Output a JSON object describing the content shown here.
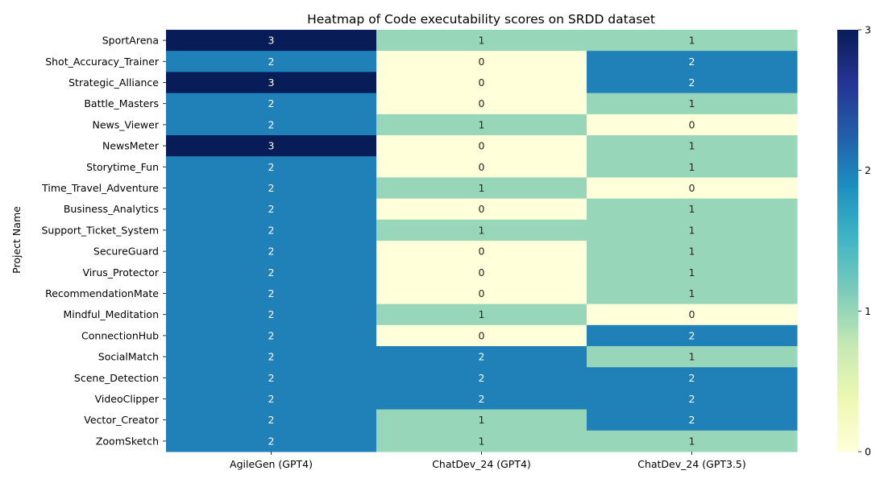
{
  "chart_data": {
    "type": "heatmap",
    "title": "Heatmap of Code executability scores on SRDD dataset",
    "xlabel": "",
    "ylabel": "Project Name",
    "columns": [
      "AgileGen (GPT4)",
      "ChatDev_24 (GPT4)",
      "ChatDev_24 (GPT3.5)"
    ],
    "rows": [
      "SportArena",
      "Shot_Accuracy_Trainer",
      "Strategic_Alliance",
      "Battle_Masters",
      "News_Viewer",
      "NewsMeter",
      "Storytime_Fun",
      "Time_Travel_Adventure",
      "Business_Analytics",
      "Support_Ticket_System",
      "SecureGuard",
      "Virus_Protector",
      "RecommendationMate",
      "Mindful_Meditation",
      "ConnectionHub",
      "SocialMatch",
      "Scene_Detection",
      "VideoClipper",
      "Vector_Creator",
      "ZoomSketch"
    ],
    "values": [
      [
        3,
        1,
        1
      ],
      [
        2,
        0,
        2
      ],
      [
        3,
        0,
        2
      ],
      [
        2,
        0,
        1
      ],
      [
        2,
        1,
        0
      ],
      [
        3,
        0,
        1
      ],
      [
        2,
        0,
        1
      ],
      [
        2,
        1,
        0
      ],
      [
        2,
        0,
        1
      ],
      [
        2,
        1,
        1
      ],
      [
        2,
        0,
        1
      ],
      [
        2,
        0,
        1
      ],
      [
        2,
        0,
        1
      ],
      [
        2,
        1,
        0
      ],
      [
        2,
        0,
        2
      ],
      [
        2,
        2,
        1
      ],
      [
        2,
        2,
        2
      ],
      [
        2,
        2,
        2
      ],
      [
        2,
        1,
        2
      ],
      [
        2,
        1,
        1
      ]
    ],
    "colormap": "YlGnBu",
    "value_range": [
      0,
      3
    ],
    "colors": {
      "0": "#ffffd9",
      "1": "#97d6b9",
      "2": "#2081b9",
      "3": "#081d58"
    },
    "annotation_colors": {
      "light": "#ffffff",
      "dark": "#262626"
    },
    "colorbar": {
      "ticks": [
        "0",
        "1",
        "2",
        "3"
      ],
      "gradient": [
        "#ffffd9",
        "#edf8b1",
        "#c7e9b4",
        "#7fcdbb",
        "#41b6c4",
        "#1d91c0",
        "#225ea8",
        "#253494",
        "#081d58"
      ]
    },
    "grid": false,
    "legend": "colorbar-right"
  }
}
